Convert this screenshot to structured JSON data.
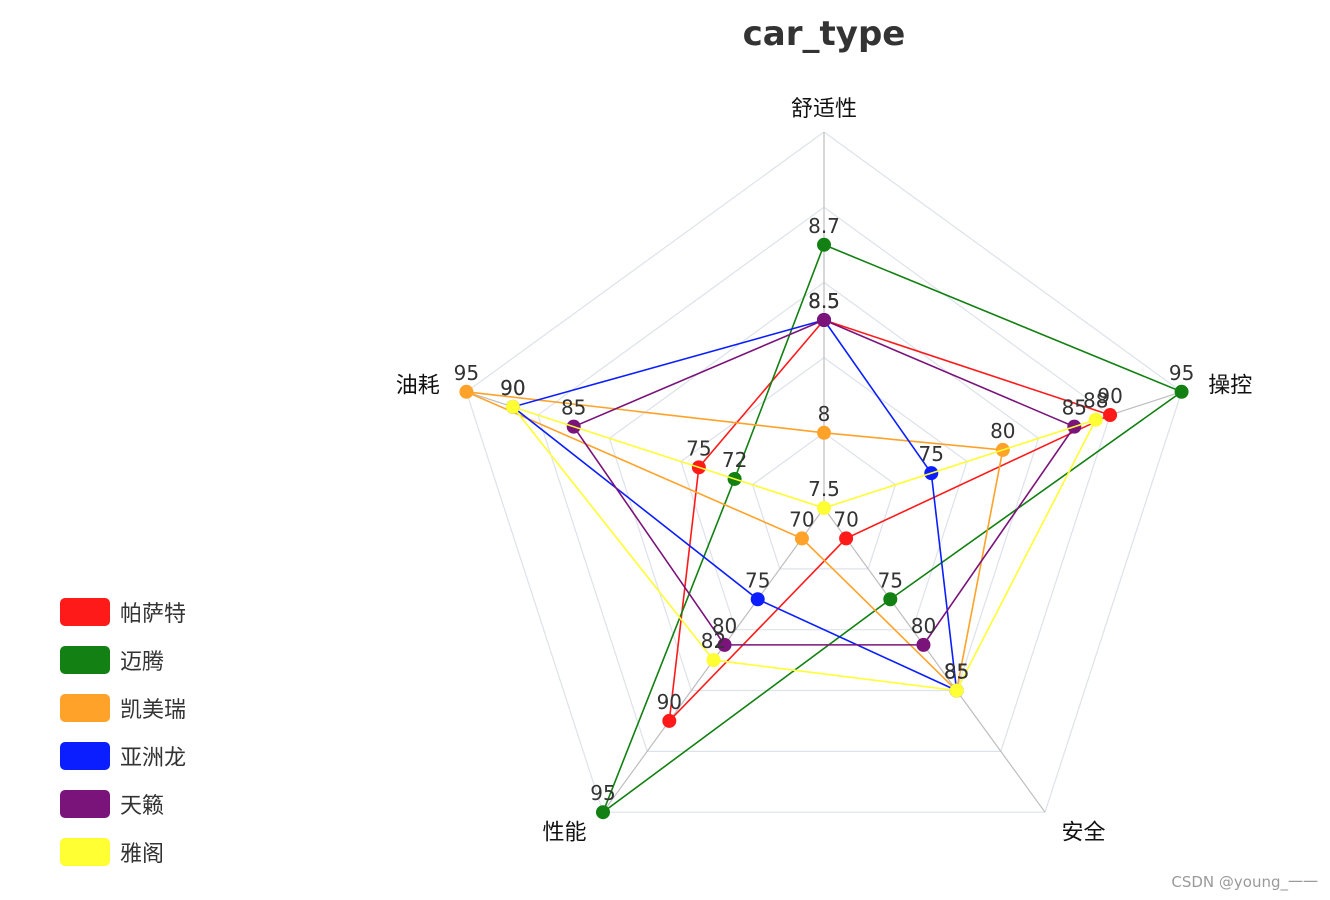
{
  "chart_data": {
    "type": "radar",
    "title": "car_type",
    "indicators": [
      "舒适性",
      "操控",
      "安全",
      "性能",
      "油耗"
    ],
    "series": [
      {
        "name": "帕萨特",
        "color": "#ff1a1a",
        "values": [
          8.5,
          90,
          70,
          90,
          75
        ]
      },
      {
        "name": "迈腾",
        "color": "#128012",
        "values": [
          8.7,
          95,
          75,
          95,
          72
        ]
      },
      {
        "name": "凯美瑞",
        "color": "#ffa229",
        "values": [
          8,
          80,
          85,
          70,
          95
        ]
      },
      {
        "name": "亚洲龙",
        "color": "#0a1eff",
        "values": [
          8.5,
          75,
          85,
          75,
          90
        ]
      },
      {
        "name": "天籁",
        "color": "#7a137a",
        "values": [
          8.5,
          85,
          80,
          80,
          85
        ]
      },
      {
        "name": "雅阁",
        "color": "#ffff33",
        "values": [
          7.5,
          88,
          85,
          82,
          90
        ]
      }
    ],
    "grid": true,
    "legend_position": "bottom-left"
  },
  "watermark": "CSDN @young_一一"
}
